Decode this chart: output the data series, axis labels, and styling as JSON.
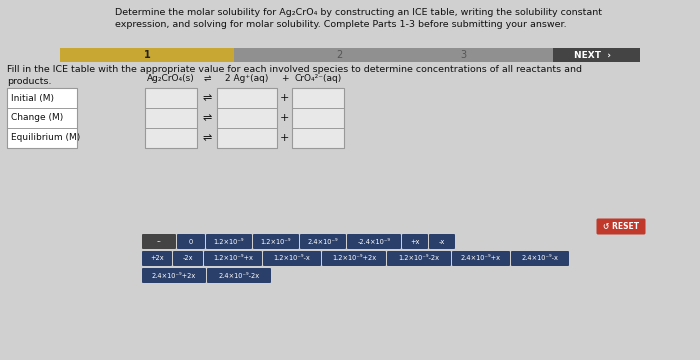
{
  "title_text": "Determine the molar solubility for Ag₂CrO₄ by constructing an ICE table, writing the solubility constant\nexpression, and solving for molar solubility. Complete Parts 1-3 before submitting your answer.",
  "instruction_text": "Fill in the ICE table with the appropriate value for each involved species to determine concentrations of all reactants and\nproducts.",
  "row_labels": [
    "Initial (M)",
    "Change (M)",
    "Equilibrium (M)"
  ],
  "col_header_texts": [
    "Ag₂CrO₄(s)",
    "⇌",
    "2 Ag⁺(aq)",
    "+",
    "CrO₄²⁻(aq)"
  ],
  "bg_color": "#d0d0d0",
  "progress_yellow": "#c8a832",
  "progress_dark": "#222222",
  "progress_gray": "#909090",
  "next_bg": "#555555",
  "button_color": "#2b3f6b",
  "button_color_dark": "#444444",
  "button_color_red": "#c0392b",
  "cell_input_bg": "#e8e8e8",
  "cell_border": "#999999",
  "label_bg": "#ffffff",
  "button_rows": [
    [
      "--",
      "0",
      "1.2×10⁻⁹",
      "1.2×10⁻⁹",
      "2.4×10⁻⁹",
      "-2.4×10⁻⁹",
      "+x",
      "-x"
    ],
    [
      "+2x",
      "-2x",
      "1.2×10⁻⁹+x",
      "1.2×10⁻⁹-x",
      "1.2×10⁻⁹+2x",
      "1.2×10⁻⁹-2x",
      "2.4×10⁻⁹+x",
      "2.4×10⁻⁹-x"
    ],
    [
      "2.4×10⁻⁹+2x",
      "2.4×10⁻⁹-2x"
    ]
  ]
}
